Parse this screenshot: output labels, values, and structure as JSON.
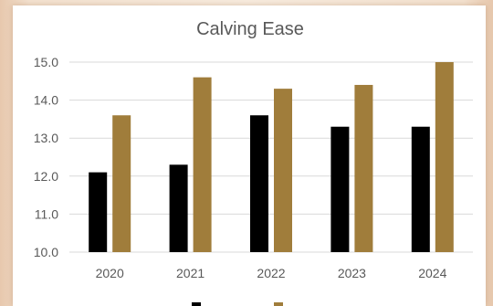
{
  "chart_data": {
    "type": "bar",
    "title": "Calving Ease",
    "xlabel": "",
    "ylabel": "",
    "categories": [
      "2020",
      "2021",
      "2022",
      "2023",
      "2024"
    ],
    "series": [
      {
        "name": "",
        "color": "#000000",
        "values": [
          12.1,
          12.3,
          13.6,
          13.3,
          13.3
        ]
      },
      {
        "name": "",
        "color": "#a07d3b",
        "values": [
          13.6,
          14.6,
          14.3,
          14.4,
          15.0
        ]
      }
    ],
    "ylim": [
      10.0,
      15.0
    ],
    "yticks": [
      "10.0",
      "11.0",
      "12.0",
      "13.0",
      "14.0",
      "15.0"
    ],
    "grid": true,
    "legend_position": "bottom"
  }
}
